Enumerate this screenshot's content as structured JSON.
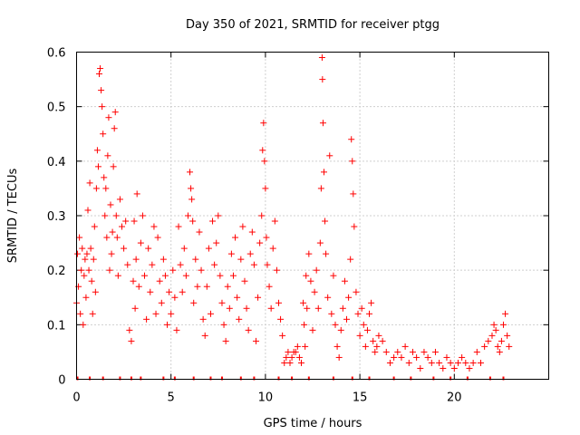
{
  "chart_data": {
    "type": "scatter",
    "title": "Day 350 of 2021, SRMTID for receiver ptgg",
    "xlabel": "GPS time / hours",
    "ylabel": "SRMTID / TECUs",
    "xlim": [
      0,
      25
    ],
    "ylim": [
      0,
      0.6
    ],
    "xticks": [
      0,
      5,
      10,
      15,
      20
    ],
    "yticks": [
      0,
      0.1,
      0.2,
      0.3,
      0.4,
      0.5,
      0.6
    ],
    "xtick_labels": [
      "0",
      "5",
      "10",
      "15",
      "20"
    ],
    "ytick_labels": [
      "0",
      "0.1",
      "0.2",
      "0.3",
      "0.4",
      "0.5",
      "0.6"
    ],
    "grid": true,
    "marker": "plus",
    "color": "#ff0000",
    "series": [
      {
        "name": "ptgg",
        "points": [
          [
            0.0,
            0.14
          ],
          [
            0.05,
            0.23
          ],
          [
            0.1,
            0.17
          ],
          [
            0.15,
            0.26
          ],
          [
            0.2,
            0.12
          ],
          [
            0.25,
            0.2
          ],
          [
            0.3,
            0.24
          ],
          [
            0.35,
            0.1
          ],
          [
            0.4,
            0.19
          ],
          [
            0.45,
            0.22
          ],
          [
            0.5,
            0.15
          ],
          [
            0.55,
            0.23
          ],
          [
            0.6,
            0.31
          ],
          [
            0.65,
            0.2
          ],
          [
            0.7,
            0.36
          ],
          [
            0.75,
            0.24
          ],
          [
            0.8,
            0.18
          ],
          [
            0.85,
            0.12
          ],
          [
            0.9,
            0.22
          ],
          [
            0.95,
            0.28
          ],
          [
            1.0,
            0.16
          ],
          [
            1.05,
            0.35
          ],
          [
            1.1,
            0.42
          ],
          [
            1.15,
            0.39
          ],
          [
            1.2,
            0.56
          ],
          [
            1.25,
            0.57
          ],
          [
            1.3,
            0.53
          ],
          [
            1.35,
            0.5
          ],
          [
            1.4,
            0.45
          ],
          [
            1.45,
            0.37
          ],
          [
            1.5,
            0.3
          ],
          [
            1.55,
            0.35
          ],
          [
            1.6,
            0.26
          ],
          [
            1.65,
            0.41
          ],
          [
            1.7,
            0.48
          ],
          [
            1.75,
            0.2
          ],
          [
            1.8,
            0.32
          ],
          [
            1.85,
            0.23
          ],
          [
            1.9,
            0.27
          ],
          [
            1.95,
            0.39
          ],
          [
            2.0,
            0.46
          ],
          [
            2.05,
            0.49
          ],
          [
            2.1,
            0.3
          ],
          [
            2.15,
            0.26
          ],
          [
            2.2,
            0.19
          ],
          [
            2.3,
            0.33
          ],
          [
            2.4,
            0.28
          ],
          [
            2.5,
            0.24
          ],
          [
            2.6,
            0.29
          ],
          [
            2.7,
            0.21
          ],
          [
            2.8,
            0.09
          ],
          [
            2.9,
            0.07
          ],
          [
            3.0,
            0.18
          ],
          [
            3.05,
            0.29
          ],
          [
            3.1,
            0.13
          ],
          [
            3.15,
            0.22
          ],
          [
            3.2,
            0.34
          ],
          [
            3.3,
            0.17
          ],
          [
            3.4,
            0.25
          ],
          [
            3.5,
            0.3
          ],
          [
            3.6,
            0.19
          ],
          [
            3.7,
            0.11
          ],
          [
            3.8,
            0.24
          ],
          [
            3.9,
            0.16
          ],
          [
            4.0,
            0.21
          ],
          [
            4.1,
            0.28
          ],
          [
            4.2,
            0.12
          ],
          [
            4.3,
            0.26
          ],
          [
            4.4,
            0.18
          ],
          [
            4.5,
            0.14
          ],
          [
            4.6,
            0.22
          ],
          [
            4.7,
            0.19
          ],
          [
            4.8,
            0.1
          ],
          [
            4.9,
            0.16
          ],
          [
            5.0,
            0.12
          ],
          [
            5.1,
            0.2
          ],
          [
            5.2,
            0.15
          ],
          [
            5.3,
            0.09
          ],
          [
            5.4,
            0.28
          ],
          [
            5.5,
            0.21
          ],
          [
            5.6,
            0.16
          ],
          [
            5.7,
            0.24
          ],
          [
            5.8,
            0.19
          ],
          [
            5.9,
            0.3
          ],
          [
            6.0,
            0.38
          ],
          [
            6.05,
            0.35
          ],
          [
            6.1,
            0.33
          ],
          [
            6.15,
            0.29
          ],
          [
            6.2,
            0.14
          ],
          [
            6.3,
            0.22
          ],
          [
            6.4,
            0.17
          ],
          [
            6.5,
            0.27
          ],
          [
            6.6,
            0.2
          ],
          [
            6.7,
            0.11
          ],
          [
            6.8,
            0.08
          ],
          [
            6.9,
            0.17
          ],
          [
            7.0,
            0.24
          ],
          [
            7.1,
            0.12
          ],
          [
            7.2,
            0.29
          ],
          [
            7.3,
            0.21
          ],
          [
            7.4,
            0.25
          ],
          [
            7.5,
            0.3
          ],
          [
            7.6,
            0.19
          ],
          [
            7.7,
            0.14
          ],
          [
            7.8,
            0.1
          ],
          [
            7.9,
            0.07
          ],
          [
            8.0,
            0.17
          ],
          [
            8.1,
            0.13
          ],
          [
            8.2,
            0.23
          ],
          [
            8.3,
            0.19
          ],
          [
            8.4,
            0.26
          ],
          [
            8.5,
            0.15
          ],
          [
            8.6,
            0.11
          ],
          [
            8.7,
            0.22
          ],
          [
            8.8,
            0.28
          ],
          [
            8.9,
            0.18
          ],
          [
            9.0,
            0.13
          ],
          [
            9.1,
            0.09
          ],
          [
            9.2,
            0.23
          ],
          [
            9.3,
            0.27
          ],
          [
            9.4,
            0.21
          ],
          [
            9.5,
            0.07
          ],
          [
            9.6,
            0.15
          ],
          [
            9.7,
            0.25
          ],
          [
            9.8,
            0.3
          ],
          [
            9.85,
            0.42
          ],
          [
            9.9,
            0.47
          ],
          [
            9.95,
            0.4
          ],
          [
            10.0,
            0.35
          ],
          [
            10.05,
            0.26
          ],
          [
            10.1,
            0.21
          ],
          [
            10.2,
            0.17
          ],
          [
            10.3,
            0.13
          ],
          [
            10.4,
            0.24
          ],
          [
            10.5,
            0.29
          ],
          [
            10.6,
            0.2
          ],
          [
            10.7,
            0.14
          ],
          [
            10.8,
            0.11
          ],
          [
            10.9,
            0.08
          ],
          [
            11.0,
            0.03
          ],
          [
            11.1,
            0.04
          ],
          [
            11.2,
            0.05
          ],
          [
            11.3,
            0.03
          ],
          [
            11.4,
            0.04
          ],
          [
            11.5,
            0.05
          ],
          [
            11.6,
            0.05
          ],
          [
            11.7,
            0.06
          ],
          [
            11.8,
            0.04
          ],
          [
            11.9,
            0.03
          ],
          [
            12.0,
            0.14
          ],
          [
            12.05,
            0.1
          ],
          [
            12.1,
            0.06
          ],
          [
            12.15,
            0.19
          ],
          [
            12.2,
            0.13
          ],
          [
            12.3,
            0.23
          ],
          [
            12.4,
            0.18
          ],
          [
            12.5,
            0.09
          ],
          [
            12.6,
            0.16
          ],
          [
            12.7,
            0.2
          ],
          [
            12.8,
            0.13
          ],
          [
            12.9,
            0.25
          ],
          [
            12.95,
            0.35
          ],
          [
            13.0,
            0.59
          ],
          [
            13.02,
            0.55
          ],
          [
            13.05,
            0.47
          ],
          [
            13.1,
            0.38
          ],
          [
            13.15,
            0.29
          ],
          [
            13.2,
            0.23
          ],
          [
            13.3,
            0.15
          ],
          [
            13.4,
            0.41
          ],
          [
            13.5,
            0.12
          ],
          [
            13.6,
            0.19
          ],
          [
            13.7,
            0.1
          ],
          [
            13.8,
            0.06
          ],
          [
            13.9,
            0.04
          ],
          [
            14.0,
            0.09
          ],
          [
            14.1,
            0.13
          ],
          [
            14.2,
            0.18
          ],
          [
            14.3,
            0.11
          ],
          [
            14.4,
            0.15
          ],
          [
            14.5,
            0.22
          ],
          [
            14.55,
            0.44
          ],
          [
            14.6,
            0.4
          ],
          [
            14.65,
            0.34
          ],
          [
            14.7,
            0.28
          ],
          [
            14.8,
            0.16
          ],
          [
            14.9,
            0.12
          ],
          [
            15.0,
            0.08
          ],
          [
            15.1,
            0.13
          ],
          [
            15.2,
            0.1
          ],
          [
            15.3,
            0.06
          ],
          [
            15.4,
            0.09
          ],
          [
            15.5,
            0.12
          ],
          [
            15.6,
            0.14
          ],
          [
            15.7,
            0.07
          ],
          [
            15.8,
            0.05
          ],
          [
            15.9,
            0.06
          ],
          [
            16.0,
            0.08
          ],
          [
            16.2,
            0.07
          ],
          [
            16.4,
            0.05
          ],
          [
            16.6,
            0.03
          ],
          [
            16.8,
            0.04
          ],
          [
            17.0,
            0.05
          ],
          [
            17.2,
            0.04
          ],
          [
            17.4,
            0.06
          ],
          [
            17.6,
            0.03
          ],
          [
            17.8,
            0.05
          ],
          [
            18.0,
            0.04
          ],
          [
            18.2,
            0.02
          ],
          [
            18.4,
            0.05
          ],
          [
            18.6,
            0.04
          ],
          [
            18.8,
            0.03
          ],
          [
            19.0,
            0.05
          ],
          [
            19.2,
            0.03
          ],
          [
            19.4,
            0.02
          ],
          [
            19.6,
            0.04
          ],
          [
            19.8,
            0.03
          ],
          [
            20.0,
            0.02
          ],
          [
            20.2,
            0.03
          ],
          [
            20.4,
            0.04
          ],
          [
            20.6,
            0.03
          ],
          [
            20.8,
            0.02
          ],
          [
            21.0,
            0.03
          ],
          [
            21.2,
            0.05
          ],
          [
            21.4,
            0.03
          ],
          [
            21.6,
            0.06
          ],
          [
            21.8,
            0.07
          ],
          [
            22.0,
            0.08
          ],
          [
            22.1,
            0.1
          ],
          [
            22.2,
            0.09
          ],
          [
            22.3,
            0.06
          ],
          [
            22.4,
            0.05
          ],
          [
            22.5,
            0.07
          ],
          [
            22.6,
            0.1
          ],
          [
            22.7,
            0.12
          ],
          [
            22.8,
            0.08
          ],
          [
            22.9,
            0.06
          ]
        ]
      }
    ],
    "zero_band_x": [
      0.05,
      0.7,
      1.4,
      2.3,
      2.9,
      3.4,
      4.6,
      5.2,
      6.2,
      7.1,
      7.7,
      8.7,
      9.4,
      10.7,
      11.4,
      12.3,
      13.6,
      14.6,
      15.5,
      16.8,
      17.7,
      18.9,
      19.8,
      20.7,
      21.9,
      22.6
    ]
  }
}
